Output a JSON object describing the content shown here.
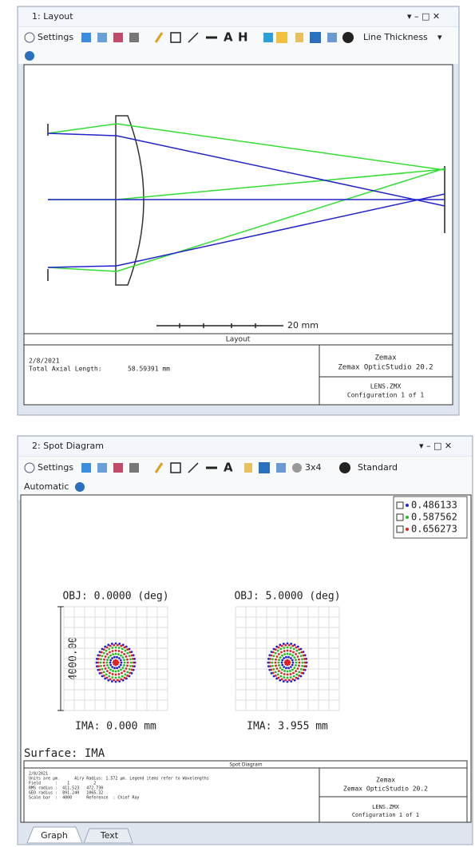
{
  "layout_window": {
    "title": "1: Layout",
    "toolbar": {
      "settings": "Settings",
      "line_thickness": "Line Thickness"
    },
    "scale_bar": "20 mm",
    "caption": "Layout",
    "footer": {
      "date": "2/8/2021",
      "axial_label": "Total Axial Length:",
      "axial_value": "58.59391 mm",
      "company": "Zemax",
      "product": "Zemax OpticStudio 20.2",
      "file": "LENS.ZMX",
      "config": "Configuration 1 of 1"
    }
  },
  "spot_window": {
    "title": "2: Spot Diagram",
    "toolbar": {
      "settings": "Settings",
      "grid_size": "3x4",
      "mode": "Standard",
      "scale": "Automatic"
    },
    "legend": [
      "0.486133",
      "0.587562",
      "0.656273"
    ],
    "fields": [
      {
        "obj": "OBJ: 0.0000 (deg)",
        "ima": "IMA: 0.000 mm"
      },
      {
        "obj": "OBJ: 5.0000 (deg)",
        "ima": "IMA: 3.955 mm"
      }
    ],
    "scale_label": "4000.00",
    "surface": "Surface: IMA",
    "caption": "Spot Diagram",
    "notes": [
      "2/8/2021",
      "Units are µm.      Airy Radius: 1.572 µm. Legend items refer to Wavelengths",
      "Field      :    1          2",
      "RMS radius :  411.523   472.730",
      "GEO radius :  891.240   1065.32",
      "Scale bar  :  4000      Reference  : Chief Ray"
    ],
    "footer": {
      "company": "Zemax",
      "product": "Zemax OpticStudio 20.2",
      "file": "LENS.ZMX",
      "config": "Configuration 1 of 1"
    },
    "tabs": [
      "Graph",
      "Text"
    ]
  }
}
